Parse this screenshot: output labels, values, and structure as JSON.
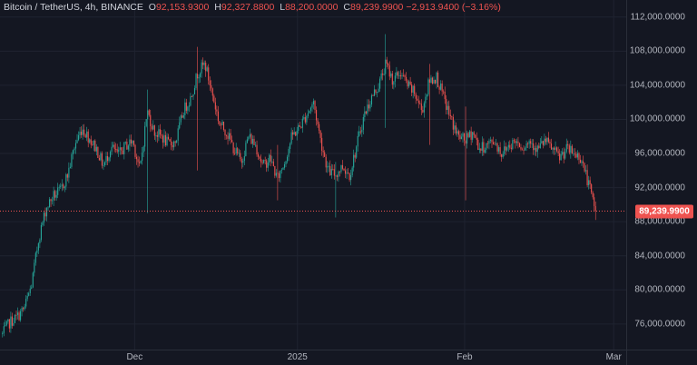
{
  "legend": {
    "symbol": "Bitcoin / TetherUS, 4h, BINANCE",
    "open_label": "O",
    "open_value": "92,153.9300",
    "high_label": "H",
    "high_value": "92,327.8800",
    "low_label": "L",
    "low_value": "88,200.0000",
    "close_label": "C",
    "close_value": "89,239.9900",
    "change": "−2,913.9400 (−3.16%)"
  },
  "last_price_label": "89,239.9900",
  "colors": {
    "up": "#26a69a",
    "down": "#ef5350",
    "background": "#141722",
    "grid": "#1f2330"
  },
  "chart_data": {
    "type": "candlestick",
    "y_ticks": [
      "76,000.0000",
      "80,000.0000",
      "84,000.0000",
      "88,000.0000",
      "92,000.0000",
      "96,000.0000",
      "100,000.0000",
      "104,000.0000",
      "108,000.0000",
      "112,000.0000"
    ],
    "x_ticks": [
      "Dec",
      "2025",
      "Feb",
      "Mar"
    ],
    "ylim": [
      73000,
      114000
    ],
    "last_price": 89239.99,
    "price_path": [
      [
        0,
        74800
      ],
      [
        1,
        76200
      ],
      [
        2,
        76800
      ],
      [
        3,
        77800
      ],
      [
        4,
        80500
      ],
      [
        5,
        86000
      ],
      [
        6,
        89500
      ],
      [
        7,
        91000
      ],
      [
        8,
        91600
      ],
      [
        9,
        93500
      ],
      [
        10,
        97000
      ],
      [
        11,
        99000
      ],
      [
        12,
        97800
      ],
      [
        13,
        96500
      ],
      [
        14,
        94500
      ],
      [
        15,
        96800
      ],
      [
        16,
        95800
      ],
      [
        17,
        96900
      ],
      [
        18,
        97500
      ],
      [
        19,
        94000
      ],
      [
        20,
        101000
      ],
      [
        21,
        98500
      ],
      [
        22,
        98000
      ],
      [
        23,
        97000
      ],
      [
        24,
        97500
      ],
      [
        25,
        101000
      ],
      [
        26,
        102500
      ],
      [
        27,
        105500
      ],
      [
        28,
        106500
      ],
      [
        29,
        103000
      ],
      [
        30,
        99500
      ],
      [
        31,
        98500
      ],
      [
        32,
        96500
      ],
      [
        33,
        95000
      ],
      [
        34,
        98000
      ],
      [
        35,
        97000
      ],
      [
        36,
        94500
      ],
      [
        37,
        95500
      ],
      [
        38,
        93000
      ],
      [
        39,
        95000
      ],
      [
        40,
        98000
      ],
      [
        41,
        99000
      ],
      [
        42,
        100500
      ],
      [
        43,
        102000
      ],
      [
        44,
        97500
      ],
      [
        45,
        94000
      ],
      [
        46,
        93500
      ],
      [
        47,
        94500
      ],
      [
        48,
        93500
      ],
      [
        49,
        97000
      ],
      [
        50,
        100500
      ],
      [
        51,
        102500
      ],
      [
        52,
        104000
      ],
      [
        53,
        106500
      ],
      [
        54,
        104500
      ],
      [
        55,
        105500
      ],
      [
        56,
        104000
      ],
      [
        57,
        103000
      ],
      [
        58,
        101000
      ],
      [
        59,
        104500
      ],
      [
        60,
        105000
      ],
      [
        61,
        102500
      ],
      [
        62,
        100000
      ],
      [
        63,
        98000
      ],
      [
        64,
        97500
      ],
      [
        65,
        98500
      ],
      [
        66,
        96500
      ],
      [
        67,
        97000
      ],
      [
        68,
        97500
      ],
      [
        69,
        96000
      ],
      [
        70,
        97000
      ],
      [
        71,
        97500
      ],
      [
        72,
        96800
      ],
      [
        73,
        97500
      ],
      [
        74,
        96500
      ],
      [
        75,
        97500
      ],
      [
        76,
        96500
      ],
      [
        77,
        95500
      ],
      [
        78,
        96500
      ],
      [
        79,
        96000
      ],
      [
        80,
        95500
      ],
      [
        81,
        92500
      ],
      [
        82,
        89240
      ]
    ],
    "highlights": [
      [
        20,
        89000,
        103500
      ],
      [
        27,
        94000,
        108500
      ],
      [
        38,
        90500,
        97000
      ],
      [
        46,
        88500,
        95000
      ],
      [
        53,
        99000,
        110000
      ],
      [
        59,
        97000,
        106500
      ],
      [
        64,
        90500,
        101500
      ]
    ]
  }
}
